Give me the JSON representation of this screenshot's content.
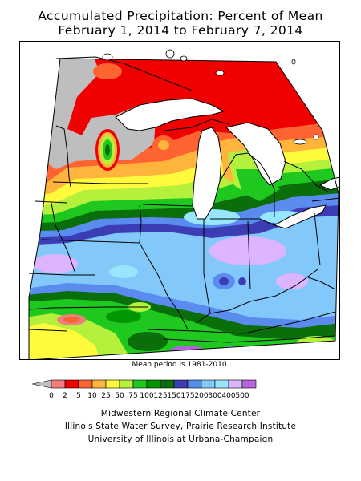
{
  "title_line1": "Accumulated Precipitation: Percent of Mean",
  "title_line2": "February 1, 2014 to February 7, 2014",
  "note": "Mean period is 1981-2010.",
  "legend": {
    "colors": [
      "#bebebe",
      "#ef7f7f",
      "#f00000",
      "#fe6432",
      "#ffb43c",
      "#fffa3c",
      "#b4f03c",
      "#1ec81e",
      "#009600",
      "#0a6e0a",
      "#3c3cb4",
      "#5a8cf0",
      "#82c8fa",
      "#96e6ff",
      "#dcb4ff",
      "#b464dc"
    ],
    "labels": [
      "0",
      "2",
      "5",
      "10",
      "25",
      "50",
      "75",
      "100",
      "125",
      "150",
      "175",
      "200",
      "300",
      "400",
      "500"
    ]
  },
  "credits": {
    "line1": "Midwestern Regional Climate Center",
    "line2": "Illinois State Water Survey, Prairie Research Institute",
    "line3": "University of Illinois at Urbana-Champaign"
  }
}
